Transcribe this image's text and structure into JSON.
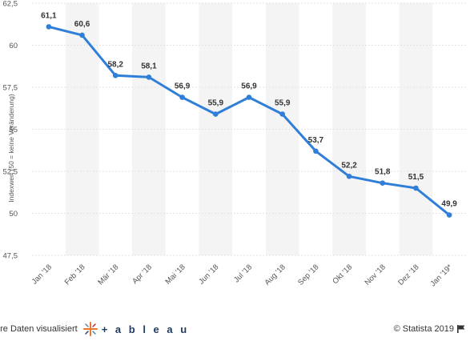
{
  "chart_data": {
    "type": "line",
    "categories": [
      "Jan '18",
      "Feb '18",
      "Mär '18",
      "Apr '18",
      "Mai '18",
      "Jun '18",
      "Jul '18",
      "Aug '18",
      "Sep '18",
      "Okt '18",
      "Nov '18",
      "Dez '18",
      "Jan '19*"
    ],
    "values": [
      61.1,
      60.6,
      58.2,
      58.1,
      56.9,
      55.9,
      56.9,
      55.9,
      53.7,
      52.2,
      51.8,
      51.5,
      49.9
    ],
    "value_labels": [
      "61,1",
      "60,6",
      "58,2",
      "58,1",
      "56,9",
      "55,9",
      "56,9",
      "55,9",
      "53,7",
      "52,2",
      "51,8",
      "51,5",
      "49,9"
    ],
    "ylabel": "Indexwert (50 = keine Veränderung)",
    "ylim": [
      47.5,
      62.5
    ],
    "yticks": [
      47.5,
      50,
      52.5,
      55,
      57.5,
      60,
      62.5
    ],
    "ytick_labels": [
      "47,5",
      "50",
      "52,5",
      "55",
      "57,5",
      "60",
      "62,5"
    ],
    "grid": true,
    "line_color": "#2f7ed8",
    "band_color": "#f4f4f4",
    "grid_color": "#e3e3e3"
  },
  "footer": {
    "left_text": "hre Daten visualisiert",
    "brand_text": "+ a b l e a u",
    "right_text": "© Statista 2019",
    "logo_icon": "tableau-logo-icon",
    "flag_icon": "flag-icon"
  }
}
